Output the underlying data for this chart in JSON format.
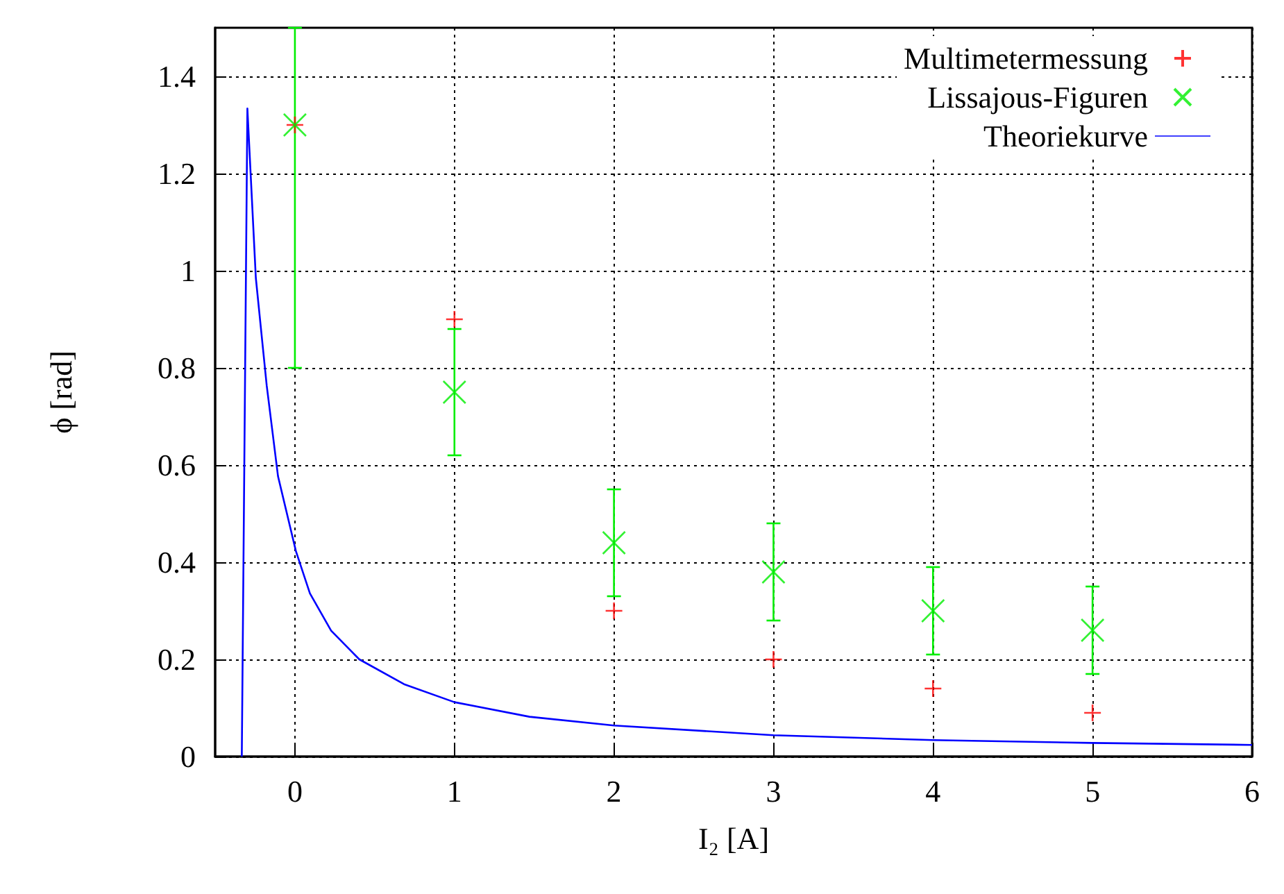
{
  "chart_data": {
    "type": "scatter",
    "xlabel": "I₂ [A]",
    "ylabel": "ϕ [rad]",
    "xlim": [
      -0.5,
      6
    ],
    "xticks": [
      0,
      1,
      2,
      3,
      4,
      5,
      6
    ],
    "ylim": [
      0,
      1.5
    ],
    "yticks": [
      0,
      0.2,
      0.4,
      0.6,
      0.8,
      1,
      1.2,
      1.4
    ],
    "grid": true,
    "legend": "top right",
    "series": [
      {
        "name": "Multimetermessung",
        "marker": "cross",
        "color": "#ff0000",
        "x": [
          0,
          1,
          2,
          3,
          4,
          5
        ],
        "values": [
          1.3,
          0.9,
          0.3,
          0.2,
          0.14,
          0.09
        ]
      },
      {
        "name": "Lissajous-Figuren",
        "marker": "cross",
        "color": "#00ee00",
        "x": [
          0,
          1,
          2,
          3,
          4,
          5
        ],
        "values": [
          1.3,
          0.75,
          0.44,
          0.38,
          0.3,
          0.26
        ],
        "errors": [
          [
            0.8,
            1.5
          ],
          [
            0.62,
            0.88
          ],
          [
            0.33,
            0.55
          ],
          [
            0.28,
            0.48
          ],
          [
            0.21,
            0.39
          ],
          [
            0.17,
            0.35
          ]
        ]
      },
      {
        "name": "Theoriekurve",
        "type": "line",
        "marker": "none",
        "line_style": "solid",
        "color": "#0000ff",
        "x": [
          -0.333,
          -0.298,
          -0.245,
          -0.177,
          -0.106,
          0.006,
          0.094,
          0.227,
          0.404,
          0.684,
          1,
          1.47,
          2,
          3,
          4,
          5,
          6
        ],
        "values": [
          0,
          1.334,
          0.985,
          0.764,
          0.577,
          0.423,
          0.336,
          0.259,
          0.2,
          0.149,
          0.112,
          0.082,
          0.064,
          0.044,
          0.034,
          0.028,
          0.024
        ]
      }
    ]
  }
}
